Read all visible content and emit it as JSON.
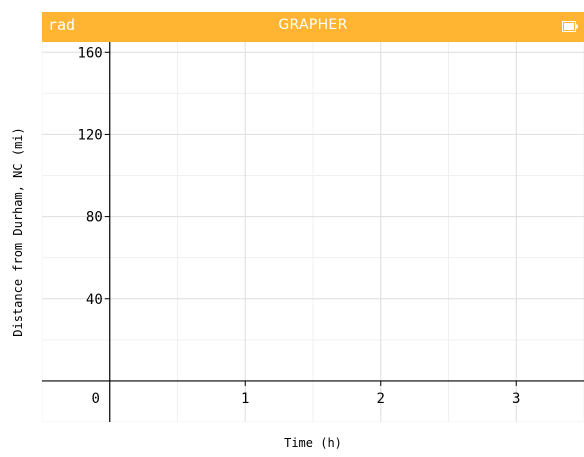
{
  "status_bar": {
    "mode": "rad",
    "title": "GRAPHER",
    "battery_icon": "battery-full-icon",
    "color": "#FFB531"
  },
  "chart_data": {
    "type": "line",
    "xlabel": "Time (h)",
    "ylabel": "Distance from Durham, NC (mi)",
    "xlim": [
      -0.5,
      3.5
    ],
    "ylim": [
      -20,
      165
    ],
    "x_ticks": [
      {
        "value": 0,
        "label": "0"
      },
      {
        "value": 1,
        "label": "1"
      },
      {
        "value": 2,
        "label": "2"
      },
      {
        "value": 3,
        "label": "3"
      }
    ],
    "y_ticks": [
      {
        "value": 40,
        "label": "40"
      },
      {
        "value": 80,
        "label": "80"
      },
      {
        "value": 120,
        "label": "120"
      },
      {
        "value": 160,
        "label": "160"
      }
    ],
    "x_minor_step": 0.5,
    "y_minor_step": 20,
    "grid": true,
    "series": []
  }
}
